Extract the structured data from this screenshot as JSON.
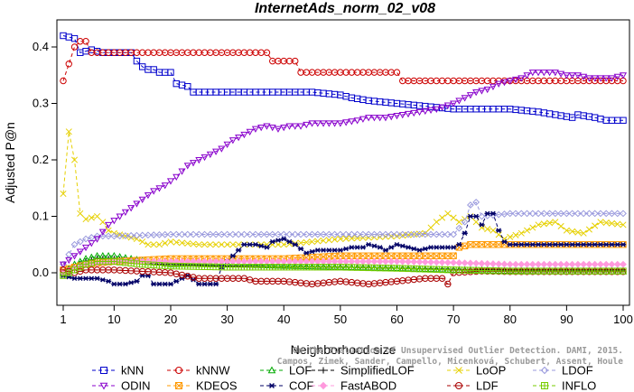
{
  "chart_data": {
    "type": "line",
    "title": "InternetAds_norm_02_v08",
    "xlabel": "Neighborhood size",
    "ylabel": "Adjusted P@n",
    "xlim": [
      1,
      100
    ],
    "ylim": [
      -0.04,
      0.44
    ],
    "xticks": [
      1,
      10,
      20,
      30,
      40,
      50,
      60,
      70,
      80,
      90,
      100
    ],
    "yticks": [
      0.0,
      0.1,
      0.2,
      0.3,
      0.4
    ],
    "ytick_labels": [
      "0.0",
      "0.1",
      "0.2",
      "0.3",
      "0.4"
    ],
    "grid": false,
    "legend_position": "bottom",
    "series": [
      {
        "name": "kNN",
        "color": "#0000cc",
        "marker": "square",
        "points": [
          [
            1,
            0.42
          ],
          [
            3,
            0.415
          ],
          [
            4,
            0.39
          ],
          [
            6,
            0.395
          ],
          [
            8,
            0.39
          ],
          [
            13,
            0.39
          ],
          [
            14,
            0.375
          ],
          [
            15,
            0.365
          ],
          [
            16,
            0.36
          ],
          [
            17,
            0.36
          ],
          [
            18,
            0.355
          ],
          [
            20,
            0.355
          ],
          [
            21,
            0.335
          ],
          [
            23,
            0.33
          ],
          [
            24,
            0.32
          ],
          [
            45,
            0.32
          ],
          [
            50,
            0.315
          ],
          [
            52,
            0.31
          ],
          [
            55,
            0.305
          ],
          [
            60,
            0.3
          ],
          [
            65,
            0.295
          ],
          [
            70,
            0.29
          ],
          [
            80,
            0.29
          ],
          [
            85,
            0.285
          ],
          [
            88,
            0.28
          ],
          [
            91,
            0.275
          ],
          [
            92,
            0.28
          ],
          [
            95,
            0.275
          ],
          [
            97,
            0.27
          ],
          [
            100,
            0.27
          ]
        ]
      },
      {
        "name": "kNNW",
        "color": "#cc0000",
        "marker": "circle",
        "points": [
          [
            1,
            0.34
          ],
          [
            2,
            0.37
          ],
          [
            3,
            0.4
          ],
          [
            4,
            0.41
          ],
          [
            5,
            0.41
          ],
          [
            6,
            0.39
          ],
          [
            37,
            0.39
          ],
          [
            38,
            0.375
          ],
          [
            42,
            0.375
          ],
          [
            43,
            0.355
          ],
          [
            60,
            0.355
          ],
          [
            61,
            0.34
          ],
          [
            100,
            0.34
          ]
        ]
      },
      {
        "name": "LOF",
        "color": "#00aa00",
        "marker": "triangle-up",
        "points": [
          [
            1,
            0.0
          ],
          [
            3,
            0.015
          ],
          [
            5,
            0.025
          ],
          [
            7,
            0.03
          ],
          [
            10,
            0.03
          ],
          [
            13,
            0.025
          ],
          [
            16,
            0.02
          ],
          [
            20,
            0.015
          ],
          [
            30,
            0.015
          ],
          [
            40,
            0.012
          ],
          [
            50,
            0.01
          ],
          [
            60,
            0.008
          ],
          [
            70,
            0.005
          ],
          [
            80,
            0.003
          ],
          [
            90,
            0.002
          ],
          [
            100,
            0.002
          ]
        ]
      },
      {
        "name": "SimplifiedLOF",
        "color": "#000000",
        "marker": "plus",
        "points": [
          [
            1,
            0.0
          ],
          [
            3,
            0.01
          ],
          [
            5,
            0.02
          ],
          [
            7,
            0.025
          ],
          [
            10,
            0.025
          ],
          [
            14,
            0.02
          ],
          [
            18,
            0.015
          ],
          [
            30,
            0.012
          ],
          [
            40,
            0.01
          ],
          [
            50,
            0.01
          ],
          [
            60,
            0.008
          ],
          [
            70,
            0.006
          ],
          [
            80,
            0.005
          ],
          [
            90,
            0.005
          ],
          [
            100,
            0.005
          ]
        ]
      },
      {
        "name": "LoOP",
        "color": "#e6d000",
        "marker": "x",
        "points": [
          [
            1,
            0.14
          ],
          [
            2,
            0.25
          ],
          [
            3,
            0.2
          ],
          [
            4,
            0.105
          ],
          [
            5,
            0.095
          ],
          [
            7,
            0.1
          ],
          [
            8,
            0.09
          ],
          [
            9,
            0.075
          ],
          [
            10,
            0.07
          ],
          [
            12,
            0.065
          ],
          [
            14,
            0.06
          ],
          [
            16,
            0.05
          ],
          [
            18,
            0.05
          ],
          [
            20,
            0.055
          ],
          [
            25,
            0.05
          ],
          [
            30,
            0.05
          ],
          [
            40,
            0.05
          ],
          [
            50,
            0.06
          ],
          [
            60,
            0.065
          ],
          [
            65,
            0.07
          ],
          [
            67,
            0.09
          ],
          [
            69,
            0.105
          ],
          [
            71,
            0.09
          ],
          [
            73,
            0.1
          ],
          [
            75,
            0.08
          ],
          [
            77,
            0.075
          ],
          [
            79,
            0.06
          ],
          [
            82,
            0.07
          ],
          [
            85,
            0.085
          ],
          [
            88,
            0.09
          ],
          [
            90,
            0.075
          ],
          [
            93,
            0.07
          ],
          [
            96,
            0.09
          ],
          [
            100,
            0.085
          ]
        ]
      },
      {
        "name": "LDOF",
        "color": "#9999dd",
        "marker": "diamond",
        "points": [
          [
            1,
            0.015
          ],
          [
            3,
            0.05
          ],
          [
            5,
            0.06
          ],
          [
            7,
            0.065
          ],
          [
            10,
            0.065
          ],
          [
            20,
            0.068
          ],
          [
            30,
            0.068
          ],
          [
            40,
            0.068
          ],
          [
            50,
            0.068
          ],
          [
            60,
            0.068
          ],
          [
            70,
            0.068
          ],
          [
            72,
            0.09
          ],
          [
            73,
            0.12
          ],
          [
            74,
            0.125
          ],
          [
            75,
            0.1
          ],
          [
            80,
            0.105
          ],
          [
            90,
            0.105
          ],
          [
            100,
            0.105
          ]
        ]
      },
      {
        "name": "ODIN",
        "color": "#8800cc",
        "marker": "triangle-down",
        "points": [
          [
            1,
            0.015
          ],
          [
            3,
            0.03
          ],
          [
            5,
            0.045
          ],
          [
            7,
            0.06
          ],
          [
            9,
            0.085
          ],
          [
            11,
            0.1
          ],
          [
            13,
            0.115
          ],
          [
            15,
            0.13
          ],
          [
            17,
            0.145
          ],
          [
            19,
            0.155
          ],
          [
            21,
            0.17
          ],
          [
            23,
            0.19
          ],
          [
            25,
            0.2
          ],
          [
            27,
            0.21
          ],
          [
            29,
            0.22
          ],
          [
            31,
            0.235
          ],
          [
            33,
            0.245
          ],
          [
            35,
            0.255
          ],
          [
            37,
            0.26
          ],
          [
            39,
            0.255
          ],
          [
            41,
            0.26
          ],
          [
            43,
            0.26
          ],
          [
            45,
            0.265
          ],
          [
            47,
            0.265
          ],
          [
            50,
            0.265
          ],
          [
            53,
            0.27
          ],
          [
            55,
            0.275
          ],
          [
            58,
            0.275
          ],
          [
            61,
            0.28
          ],
          [
            64,
            0.285
          ],
          [
            67,
            0.29
          ],
          [
            70,
            0.3
          ],
          [
            72,
            0.31
          ],
          [
            74,
            0.32
          ],
          [
            76,
            0.325
          ],
          [
            78,
            0.335
          ],
          [
            80,
            0.34
          ],
          [
            82,
            0.345
          ],
          [
            84,
            0.355
          ],
          [
            86,
            0.355
          ],
          [
            88,
            0.355
          ],
          [
            90,
            0.35
          ],
          [
            92,
            0.35
          ],
          [
            94,
            0.345
          ],
          [
            96,
            0.345
          ],
          [
            98,
            0.345
          ],
          [
            100,
            0.35
          ]
        ]
      },
      {
        "name": "KDEOS",
        "color": "#ff9900",
        "marker": "square-x",
        "points": [
          [
            1,
            0.005
          ],
          [
            3,
            0.01
          ],
          [
            5,
            0.015
          ],
          [
            10,
            0.02
          ],
          [
            20,
            0.025
          ],
          [
            30,
            0.025
          ],
          [
            40,
            0.025
          ],
          [
            50,
            0.03
          ],
          [
            60,
            0.03
          ],
          [
            70,
            0.03
          ],
          [
            71,
            0.045
          ],
          [
            73,
            0.05
          ],
          [
            75,
            0.05
          ],
          [
            80,
            0.05
          ],
          [
            90,
            0.05
          ],
          [
            100,
            0.05
          ]
        ]
      },
      {
        "name": "COF",
        "color": "#000066",
        "marker": "asterisk",
        "points": [
          [
            1,
            -0.005
          ],
          [
            3,
            -0.01
          ],
          [
            5,
            -0.01
          ],
          [
            7,
            -0.01
          ],
          [
            9,
            -0.015
          ],
          [
            10,
            -0.02
          ],
          [
            12,
            -0.02
          ],
          [
            14,
            -0.015
          ],
          [
            15,
            -0.005
          ],
          [
            16,
            -0.005
          ],
          [
            17,
            -0.02
          ],
          [
            20,
            -0.02
          ],
          [
            22,
            -0.01
          ],
          [
            23,
            -0.005
          ],
          [
            25,
            -0.02
          ],
          [
            28,
            -0.02
          ],
          [
            29,
            0.01
          ],
          [
            31,
            0.03
          ],
          [
            33,
            0.05
          ],
          [
            35,
            0.05
          ],
          [
            37,
            0.045
          ],
          [
            38,
            0.055
          ],
          [
            40,
            0.06
          ],
          [
            42,
            0.05
          ],
          [
            44,
            0.035
          ],
          [
            46,
            0.04
          ],
          [
            48,
            0.04
          ],
          [
            50,
            0.04
          ],
          [
            52,
            0.045
          ],
          [
            54,
            0.045
          ],
          [
            55,
            0.05
          ],
          [
            57,
            0.045
          ],
          [
            58,
            0.04
          ],
          [
            60,
            0.05
          ],
          [
            62,
            0.045
          ],
          [
            64,
            0.04
          ],
          [
            66,
            0.045
          ],
          [
            68,
            0.045
          ],
          [
            70,
            0.045
          ],
          [
            71,
            0.05
          ],
          [
            72,
            0.07
          ],
          [
            73,
            0.1
          ],
          [
            74,
            0.1
          ],
          [
            75,
            0.085
          ],
          [
            76,
            0.105
          ],
          [
            77,
            0.105
          ],
          [
            78,
            0.075
          ],
          [
            79,
            0.055
          ],
          [
            80,
            0.05
          ],
          [
            90,
            0.05
          ],
          [
            100,
            0.05
          ]
        ]
      },
      {
        "name": "FastABOD",
        "color": "#ff99dd",
        "marker": "diamond-filled",
        "points": [
          [
            1,
            0.0
          ],
          [
            3,
            0.008
          ],
          [
            5,
            0.015
          ],
          [
            10,
            0.02
          ],
          [
            20,
            0.02
          ],
          [
            30,
            0.02
          ],
          [
            40,
            0.02
          ],
          [
            50,
            0.02
          ],
          [
            60,
            0.02
          ],
          [
            70,
            0.018
          ],
          [
            80,
            0.015
          ],
          [
            90,
            0.015
          ],
          [
            100,
            0.015
          ]
        ]
      },
      {
        "name": "LDF",
        "color": "#aa0000",
        "marker": "circle-minus",
        "points": [
          [
            1,
            0.005
          ],
          [
            3,
            0.0
          ],
          [
            5,
            0.005
          ],
          [
            10,
            0.005
          ],
          [
            20,
            0.0
          ],
          [
            25,
            -0.01
          ],
          [
            30,
            -0.01
          ],
          [
            33,
            -0.01
          ],
          [
            35,
            -0.015
          ],
          [
            40,
            -0.015
          ],
          [
            45,
            -0.02
          ],
          [
            50,
            -0.015
          ],
          [
            55,
            -0.02
          ],
          [
            60,
            -0.015
          ],
          [
            65,
            -0.01
          ],
          [
            68,
            -0.01
          ],
          [
            69,
            -0.02
          ],
          [
            70,
            0.0
          ],
          [
            75,
            0.003
          ],
          [
            80,
            0.002
          ],
          [
            90,
            0.002
          ],
          [
            100,
            0.002
          ]
        ]
      },
      {
        "name": "INFLO",
        "color": "#77cc00",
        "marker": "square-plus",
        "points": [
          [
            1,
            -0.005
          ],
          [
            3,
            0.005
          ],
          [
            5,
            0.015
          ],
          [
            7,
            0.02
          ],
          [
            10,
            0.02
          ],
          [
            15,
            0.015
          ],
          [
            20,
            0.012
          ],
          [
            30,
            0.01
          ],
          [
            40,
            0.01
          ],
          [
            50,
            0.01
          ],
          [
            60,
            0.008
          ],
          [
            70,
            0.005
          ],
          [
            80,
            0.003
          ],
          [
            90,
            0.003
          ],
          [
            100,
            0.003
          ]
        ]
      }
    ]
  },
  "watermark": "Campos, Zimek, Sander, Campello, Micenková, Schubert, Assent, Houle",
  "watermark_line1": "On the Evaluation of Unsupervised Outlier Detection. DAMI, 2015."
}
